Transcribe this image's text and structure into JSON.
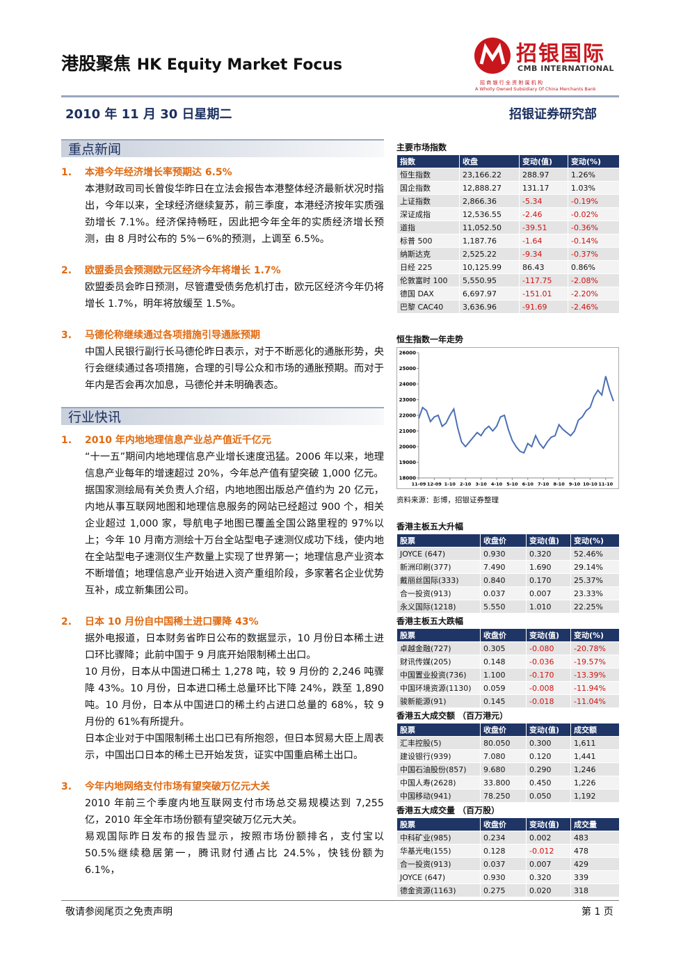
{
  "header": {
    "title": "港股聚焦",
    "subtitle": "HK Equity Market Focus",
    "logo": {
      "name": "招银国际",
      "en": "CMB INTERNATIONAL",
      "tagline_cn": "招 商 银 行 全 资 附 属 机 构",
      "tagline_en": "A Wholly Owned Subsidiary Of China Merchants Bank"
    },
    "date": "2010 年 11 月 30 日星期二",
    "department": "招银证券研究部"
  },
  "sections": [
    {
      "heading": "重点新闻",
      "items": [
        {
          "number": "1.",
          "title": "本港今年经济增长率预期达 6.5%",
          "paragraphs": [
            "本港财政司司长曾俊华昨日在立法会报告本港整体经济最新状况时指出，今年以来，全球经济继续复苏，前三季度，本港经济按年实质强劲增长 7.1%。经济保持畅旺，因此把今年全年的实质经济增长预测，由 8 月时公布的 5%－6%的预测，上调至 6.5%。"
          ]
        },
        {
          "number": "2.",
          "title": "欧盟委员会预测欧元区经济今年将增长 1.7%",
          "paragraphs": [
            "欧盟委员会昨日预测，尽管遭受债务危机打击，欧元区经济今年仍将增长 1.7%，明年将放缓至 1.5%。"
          ]
        },
        {
          "number": "3.",
          "title": "马德伦称继续通过各项措施引导通胀预期",
          "paragraphs": [
            "中国人民银行副行长马德伦昨日表示，对于不断恶化的通胀形势，央行会继续通过各项措施，合理的引导公众和市场的通胀预期。而对于年内是否会再次加息，马德伦并未明确表态。"
          ]
        }
      ]
    },
    {
      "heading": "行业快讯",
      "items": [
        {
          "number": "1.",
          "title": "2010 年内地地理信息产业总产值近千亿元",
          "paragraphs": [
            "“十一五”期间内地地理信息产业增长速度迅猛。2006 年以来，地理信息产业每年的增速超过 20%，今年总产值有望突破 1,000 亿元。",
            "据国家测绘局有关负责人介绍，内地地图出版总产值约为 20 亿元，内地从事互联网地图和地理信息服务的网站已经超过 900 个，相关企业超过 1,000 家，导航电子地图已覆盖全国公路里程的 97%以上；今年 10 月南方测绘十万台全站型电子速测仪成功下线，使内地在全站型电子速测仪生产数量上实现了世界第一；地理信息产业资本不断增值；地理信息产业开始进入资产重组阶段，多家著名企业优势互补，成立新集团公司。"
          ]
        },
        {
          "number": "2.",
          "title": "日本 10 月份自中国稀土进口骤降 43%",
          "paragraphs": [
            "据外电报道，日本财务省昨日公布的数据显示，10 月份日本稀土进口环比骤降；此前中国于 9 月底开始限制稀土出口。",
            "10 月份，日本从中国进口稀土 1,278 吨，较 9 月份的 2,246 吨骤降 43%。10 月份，日本进口稀土总量环比下降 24%，跌至 1,890 吨。10 月份，日本从中国进口的稀土约占进口总量的 68%，较 9 月份的 61%有所提升。",
            "日本企业对于中国限制稀土出口已有所抱怨，但日本贸易大臣上周表示，中国出口日本的稀土已开始发货，证实中国重启稀土出口。"
          ]
        },
        {
          "number": "3.",
          "title": "今年内地网络支付市场有望突破万亿元大关",
          "paragraphs": [
            "2010 年前三个季度内地互联网支付市场总交易规模达到 7,255 亿，2010 年全年市场份额有望突破万亿元大关。",
            "易观国际昨日发布的报告显示，按照市场份额排名，支付宝以 50.5%继续稳居第一，腾讯财付通占比 24.5%，快钱份额为 6.1%，"
          ]
        }
      ]
    }
  ],
  "sidebar": {
    "index_table": {
      "title": "主要市场指数",
      "columns": [
        "指数",
        "收盘",
        "变动(值)",
        "变动(%)"
      ],
      "rows": [
        [
          "恒生指数",
          "23,166.22",
          "288.97",
          "1.26%"
        ],
        [
          "国企指数",
          "12,888.27",
          "131.17",
          "1.03%"
        ],
        [
          "上证指数",
          "2,866.36",
          "-5.34",
          "-0.19%"
        ],
        [
          "深证成指",
          "12,536.55",
          "-2.46",
          "-0.02%"
        ],
        [
          "道指",
          "11,052.50",
          "-39.51",
          "-0.36%"
        ],
        [
          "标普 500",
          "1,187.76",
          "-1.64",
          "-0.14%"
        ],
        [
          "纳斯达克",
          "2,525.22",
          "-9.34",
          "-0.37%"
        ],
        [
          "日经 225",
          "10,125.99",
          "86.43",
          "0.86%"
        ],
        [
          "伦敦富时 100",
          "5,550.95",
          "-117.75",
          "-2.08%"
        ],
        [
          "德国 DAX",
          "6,697.97",
          "-151.01",
          "-2.20%"
        ],
        [
          "巴黎 CAC40",
          "3,636.96",
          "-91.69",
          "-2.46%"
        ]
      ]
    },
    "source": "资料来源：彭博，招银证券整理",
    "tables": [
      {
        "title": "香港主板五大升幅",
        "columns": [
          "股票",
          "收盘价",
          "变动(值)",
          "变动(%)"
        ],
        "rows": [
          [
            "JOYCE (647)",
            "0.930",
            "0.320",
            "52.46%"
          ],
          [
            "新洲印刷(377)",
            "7.490",
            "1.690",
            "29.14%"
          ],
          [
            "戴丽丝国际(333)",
            "0.840",
            "0.170",
            "25.37%"
          ],
          [
            "合一投资(913)",
            "0.037",
            "0.007",
            "23.33%"
          ],
          [
            "永义国际(1218)",
            "5.550",
            "1.010",
            "22.25%"
          ]
        ]
      },
      {
        "title": "香港主板五大跌幅",
        "columns": [
          "股票",
          "收盘价",
          "变动(值)",
          "变动(%)"
        ],
        "rows": [
          [
            "卓越金融(727)",
            "0.305",
            "-0.080",
            "-20.78%"
          ],
          [
            "财讯传媒(205)",
            "0.148",
            "-0.036",
            "-19.57%"
          ],
          [
            "中国置业投资(736)",
            "1.100",
            "-0.170",
            "-13.39%"
          ],
          [
            "中国环境资源(1130)",
            "0.059",
            "-0.008",
            "-11.94%"
          ],
          [
            "骏新能源(91)",
            "0.145",
            "-0.018",
            "-11.04%"
          ]
        ]
      },
      {
        "title": "香港五大成交额 （百万港元）",
        "columns": [
          "股票",
          "收盘价",
          "变动(值)",
          "成交额"
        ],
        "rows": [
          [
            "汇丰控股(5)",
            "80.050",
            "0.300",
            "1,611"
          ],
          [
            "建设银行(939)",
            "7.080",
            "0.120",
            "1,441"
          ],
          [
            "中国石油股份(857)",
            "9.680",
            "0.290",
            "1,246"
          ],
          [
            "中国人寿(2628)",
            "33.800",
            "0.450",
            "1,226"
          ],
          [
            "中国移动(941)",
            "78.250",
            "0.050",
            "1,192"
          ]
        ]
      },
      {
        "title": "香港五大成交量 （百万股）",
        "columns": [
          "股票",
          "收盘价",
          "变动(值)",
          "成交量"
        ],
        "rows": [
          [
            "中科矿业(985)",
            "0.234",
            "0.002",
            "483"
          ],
          [
            "华基光电(155)",
            "0.128",
            "-0.012",
            "478"
          ],
          [
            "合一投资(913)",
            "0.037",
            "0.007",
            "429"
          ],
          [
            "JOYCE (647)",
            "0.930",
            "0.320",
            "339"
          ],
          [
            "德金资源(1163)",
            "0.275",
            "0.020",
            "318"
          ]
        ]
      }
    ]
  },
  "chart_data": {
    "type": "line",
    "title": "恒生指数一年走势",
    "color": "#4a6fb5",
    "categories": [
      "11-09",
      null,
      null,
      null,
      "12-09",
      null,
      null,
      null,
      "1-10",
      null,
      null,
      null,
      "2-10",
      null,
      null,
      null,
      "3-10",
      null,
      null,
      null,
      "4-10",
      null,
      null,
      null,
      "5-10",
      null,
      null,
      null,
      "6-10",
      null,
      null,
      null,
      "7-10",
      null,
      null,
      null,
      "8-10",
      null,
      null,
      null,
      "9-10",
      null,
      null,
      null,
      "10-10",
      null,
      null,
      null,
      "11-10",
      null,
      null
    ],
    "values": [
      21800,
      22500,
      22300,
      21600,
      21900,
      22000,
      21300,
      21500,
      22000,
      22400,
      21200,
      20300,
      20000,
      20300,
      20600,
      20900,
      20700,
      21100,
      21300,
      21000,
      21300,
      21900,
      22000,
      21100,
      20400,
      20000,
      19700,
      19600,
      20200,
      20000,
      20700,
      20200,
      19900,
      20300,
      20600,
      20700,
      21400,
      21100,
      20900,
      20700,
      21000,
      21700,
      21900,
      22300,
      22500,
      23200,
      23600,
      23300,
      24500,
      23600,
      22900
    ],
    "ylim": [
      18000,
      26000
    ],
    "yticks": [
      18000,
      19000,
      20000,
      21000,
      22000,
      23000,
      24000,
      25000,
      26000
    ]
  },
  "footer": {
    "disclaimer": "敬请参阅尾页之免责声明",
    "page": "第 1 页"
  }
}
